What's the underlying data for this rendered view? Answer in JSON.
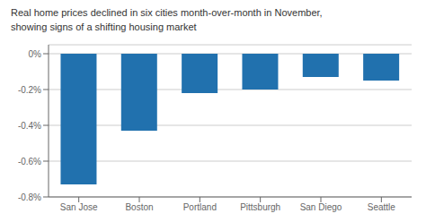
{
  "chart_data": {
    "type": "bar",
    "title": "Real home prices declined in six cities month-over-month in November,",
    "subtitle": "showing signs of a shifting housing market",
    "categories": [
      "San Jose",
      "Boston",
      "Portland",
      "Pittsburgh",
      "San Diego",
      "Seattle"
    ],
    "values": [
      -0.73,
      -0.43,
      -0.22,
      -0.2,
      -0.13,
      -0.15
    ],
    "color": "#2171ae",
    "ylim": [
      -0.8,
      0.05
    ],
    "yticks": [
      {
        "value": 0,
        "label": "0%"
      },
      {
        "value": -0.2,
        "label": "-0.2%"
      },
      {
        "value": -0.4,
        "label": "-0.4%"
      },
      {
        "value": -0.6,
        "label": "-0.6%"
      },
      {
        "value": -0.8,
        "label": "-0.8%"
      }
    ],
    "grid": true
  }
}
